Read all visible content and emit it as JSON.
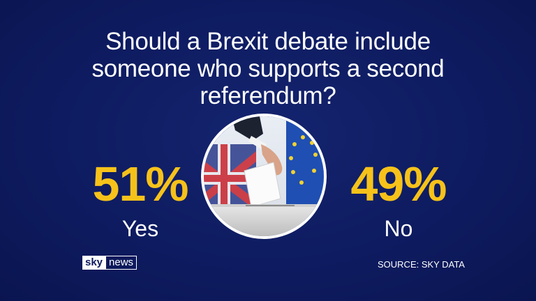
{
  "title": "Should a Brexit debate include someone who supports a second referendum?",
  "chart_data": {
    "type": "table",
    "title": "Should a Brexit debate include someone who supports a second referendum?",
    "categories": [
      "Yes",
      "No"
    ],
    "values": [
      51,
      49
    ],
    "value_labels": [
      "51%",
      "49%"
    ],
    "unit": "%"
  },
  "results": {
    "yes": {
      "value": "51%",
      "label": "Yes"
    },
    "no": {
      "value": "49%",
      "label": "No"
    }
  },
  "branding": {
    "sky": "sky",
    "news": "news"
  },
  "source": "SOURCE: SKY DATA",
  "colors": {
    "background": "#0d1a5e",
    "accent": "#f6c21a",
    "text": "#ffffff"
  },
  "image": {
    "icon": "ballot-box-photo"
  }
}
